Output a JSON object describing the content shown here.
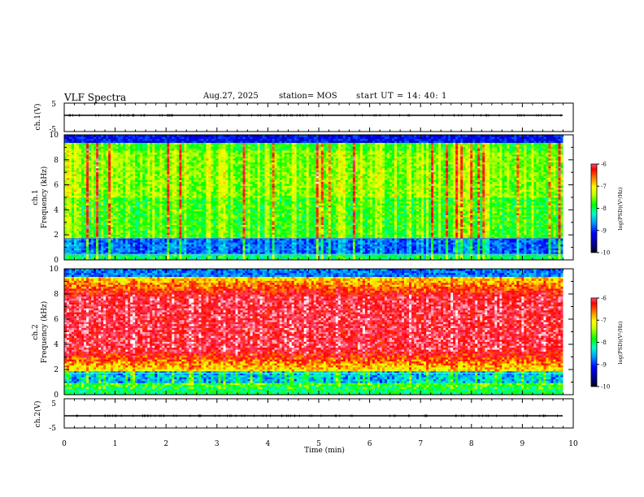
{
  "header": {
    "title": "VLF Spectra",
    "date": "Aug.27, 2025",
    "station_label": "station= MOS",
    "start_label": "start  UT  =   14: 40: 1"
  },
  "chart_data": [
    {
      "type": "line",
      "panel": "ch1-waveform",
      "ylabel": "ch.1(V)",
      "ylim": [
        -5,
        5
      ],
      "yticks": [
        "5",
        "-5"
      ],
      "baseline_value": 0,
      "xlim": [
        0,
        10
      ]
    },
    {
      "type": "heatmap",
      "panel": "ch1-spectrogram",
      "ylabel_line1": "ch.1",
      "ylabel_line2": "Frequency (kHz)",
      "ylim": [
        0,
        10
      ],
      "yticks": [
        "0",
        "2",
        "4",
        "6",
        "8",
        "10"
      ],
      "xlim": [
        0,
        9.8
      ],
      "lowband_ceiling": 1.7,
      "bright_band_top": 8.8,
      "colorbar_label": "log(PSD)(V²/Hz)",
      "colorbar_range": [
        -10,
        -6
      ],
      "colorbar_ticks": [
        "-6",
        "-7",
        "-8",
        "-9",
        "-10"
      ]
    },
    {
      "type": "heatmap",
      "panel": "ch2-spectrogram",
      "ylabel_line1": "ch.2",
      "ylabel_line2": "Frequency (kHz)",
      "ylim": [
        0,
        10
      ],
      "yticks": [
        "0",
        "2",
        "4",
        "6",
        "8",
        "10"
      ],
      "xlim": [
        0,
        9.8
      ],
      "intense_band": [
        3.6,
        7.7
      ],
      "colorbar_label": "log(PSD)(V²/Hz)",
      "colorbar_range": [
        -10,
        -6
      ],
      "colorbar_ticks": [
        "-6",
        "-7",
        "-8",
        "-9",
        "-10"
      ]
    },
    {
      "type": "line",
      "panel": "ch2-waveform",
      "ylabel": "ch.2(V)",
      "ylim": [
        -5,
        5
      ],
      "yticks": [
        "5",
        "-5"
      ],
      "baseline_value": 0,
      "xlim": [
        0,
        10
      ]
    }
  ],
  "x_axis": {
    "label": "Time  (min)",
    "ticks": [
      "0",
      "1",
      "2",
      "3",
      "4",
      "5",
      "6",
      "7",
      "8",
      "9",
      "10"
    ],
    "range": [
      0,
      10
    ]
  },
  "colors": {
    "colormap": [
      "#00006e",
      "#0000ff",
      "#00a0ff",
      "#00ffc8",
      "#00ff00",
      "#c8ff00",
      "#ffff00",
      "#ff8000",
      "#ff0000",
      "#ff3c64",
      "#ffffff"
    ]
  }
}
